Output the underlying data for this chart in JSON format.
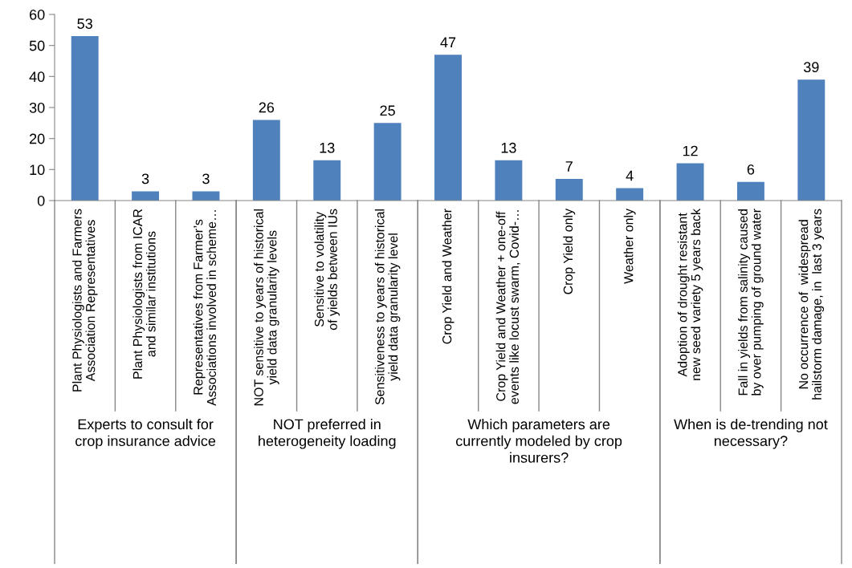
{
  "chart_data": [
    {
      "type": "bar",
      "categories": [
        "Plant Physiologists and Farmers Association Representatives",
        "Plant Physiologists from ICAR and similar institutions",
        "Representatives from Farmer’s Associations involved in scheme…"
      ],
      "values": [
        53,
        3,
        3
      ],
      "color": "#4f81bd",
      "data_labels": true,
      "ylim": [
        0,
        60
      ],
      "yticks": [
        0,
        10,
        20,
        30,
        40,
        50,
        60
      ],
      "xlabel": "Experts to consult for crop insurance advice"
    },
    {
      "type": "bar",
      "categories": [
        "NOT sensitive to years of historical yield data granularity levels",
        "Sensitive to volatility of yields between IUs",
        "Sensitiveness to years of historical yield data granularity level"
      ],
      "values": [
        26,
        13,
        25
      ],
      "color": "#4f81bd",
      "data_labels": true,
      "ylim": [
        0,
        60
      ],
      "yticks": [
        0,
        10,
        20,
        30,
        40,
        50,
        60
      ],
      "tick_labels": "x",
      "xlabel": "NOT preferred in heterogeneity loading"
    },
    {
      "type": "bar",
      "categories": [
        "Crop Yield and Weather",
        "Crop Yield and Weather + one-off events like locust swarm, Covid-…",
        "Crop Yield only",
        "Weather only"
      ],
      "values": [
        47,
        13,
        7,
        4
      ],
      "color": "#4f81bd",
      "data_labels": true,
      "ylim": [
        0,
        60
      ],
      "yticks": [
        0,
        10,
        20,
        30,
        40,
        50,
        60
      ],
      "tick_labels": "x",
      "xlabel": "Which parameters are currently modeled by crop insurers?"
    },
    {
      "type": "bar",
      "categories": [
        "Adoption of drought resistant new seed variety 5 years back",
        "Fall in yields from salinity caused by over pumping of ground water",
        "No occurrence of  widespread hailstorm damage, in  last 3 years"
      ],
      "values": [
        12,
        6,
        39
      ],
      "color": "#4f81bd",
      "data_labels": true,
      "ylim": [
        0,
        60
      ],
      "yticks": [
        0,
        10,
        20,
        30,
        40,
        50,
        60
      ],
      "tick_labels": "x",
      "xlabel": "When is de-trending not necessary?"
    }
  ]
}
